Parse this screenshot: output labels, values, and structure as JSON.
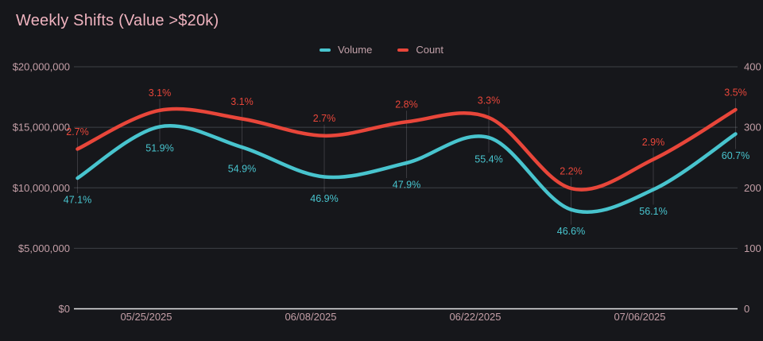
{
  "title": "Weekly Shifts (Value >$20k)",
  "legend": {
    "items": [
      {
        "label": "Volume",
        "color": "#48c4ce"
      },
      {
        "label": "Count",
        "color": "#e8463a"
      }
    ]
  },
  "colors": {
    "background": "#16171b",
    "title_text": "#efb3bf",
    "axis_text": "#c49fa7",
    "grid_line": "#3e4146",
    "baseline": "#e8e8ea",
    "leader_line": "rgba(220,220,230,0.18)",
    "volume": "#48c4ce",
    "count": "#e8463a"
  },
  "chart_data": {
    "type": "line",
    "title": "Weekly Shifts (Value >$20k)",
    "num_points": 9,
    "x_tick_labels": [
      "05/25/2025",
      "06/08/2025",
      "06/22/2025",
      "07/06/2025"
    ],
    "x_label_indices": [
      1,
      3,
      5,
      7
    ],
    "left_axis": {
      "min": 0,
      "max": 20000000,
      "ticks": [
        "$0",
        "$5,000,000",
        "$10,000,000",
        "$15,000,000",
        "$20,000,000"
      ]
    },
    "right_axis": {
      "min": 0,
      "max": 400,
      "ticks": [
        "0",
        "100",
        "200",
        "300",
        "400"
      ]
    },
    "grid": true,
    "legend_position": "top",
    "curve": "spline",
    "series": [
      {
        "name": "Volume",
        "axis": "left",
        "color": "#48c4ce",
        "values": [
          10800000,
          15050000,
          13350000,
          10900000,
          12050000,
          14150000,
          8200000,
          9850000,
          14450000
        ],
        "point_labels": [
          "47.1%",
          "51.9%",
          "54.9%",
          "46.9%",
          "47.9%",
          "55.4%",
          "46.6%",
          "56.1%",
          "60.7%"
        ],
        "label_side": "below"
      },
      {
        "name": "Count",
        "axis": "right",
        "color": "#e8463a",
        "values": [
          264,
          328,
          314,
          286,
          309,
          316,
          199,
          247,
          329
        ],
        "point_labels": [
          "2.7%",
          "3.1%",
          "3.1%",
          "2.7%",
          "2.8%",
          "3.3%",
          "2.2%",
          "2.9%",
          "3.5%"
        ],
        "label_side": "above"
      }
    ]
  }
}
